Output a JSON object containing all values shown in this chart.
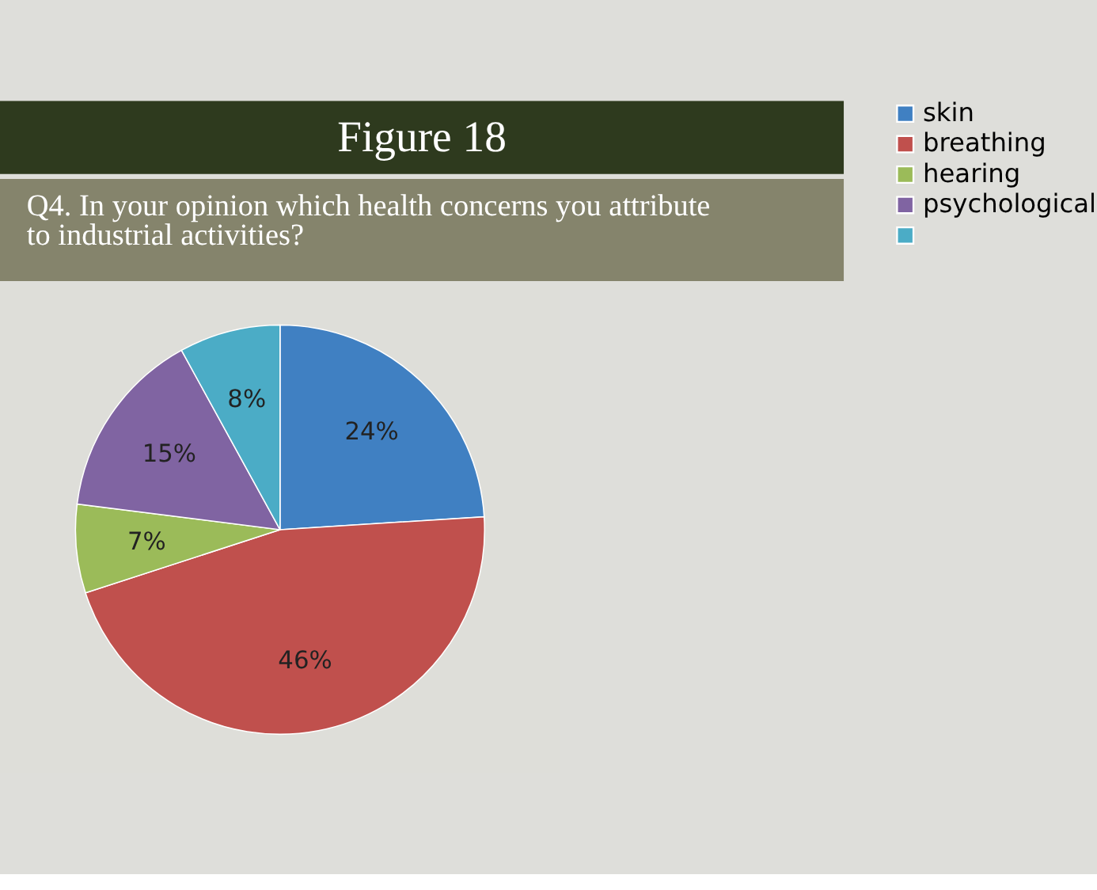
{
  "chart_data": {
    "type": "pie",
    "title": "Figure 18",
    "subtitle": "Q4. In your opinion which health concerns you attribute to industrial activities?",
    "categories": [
      "skin",
      "breathing",
      "hearing",
      "psychological",
      null
    ],
    "values": [
      24,
      46,
      7,
      15,
      8
    ],
    "value_labels": [
      "24%",
      "46%",
      "7%",
      "15%",
      "8%"
    ],
    "colors": [
      "#4080c2",
      "#c0504d",
      "#9bbb59",
      "#8064a2",
      "#4bacc6"
    ],
    "legend": "right"
  }
}
